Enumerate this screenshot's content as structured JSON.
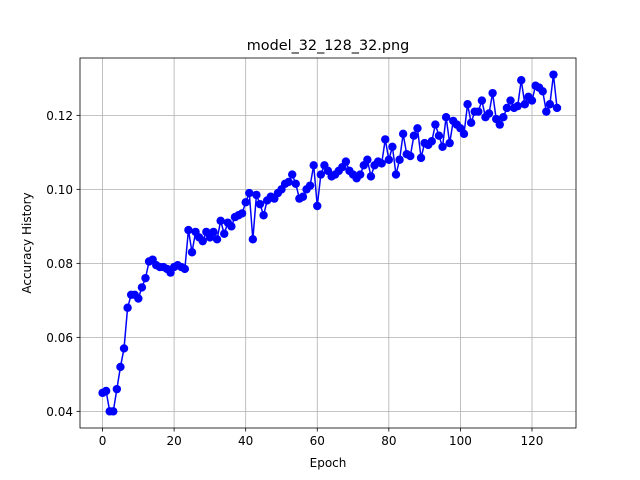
{
  "chart_data": {
    "type": "line",
    "title": "model_32_128_32.png",
    "xlabel": "Epoch",
    "ylabel": "Accuracy History",
    "xlim": [
      -6.3,
      132.3
    ],
    "ylim": [
      0.0355,
      0.1355
    ],
    "xticks": [
      0,
      20,
      40,
      60,
      80,
      100,
      120
    ],
    "yticks": [
      0.04,
      0.06,
      0.08,
      0.1,
      0.12
    ],
    "ytick_labels": [
      "0.04",
      "0.06",
      "0.08",
      "0.10",
      "0.12"
    ],
    "grid": true,
    "series": [
      {
        "color": "#0000ff",
        "marker": "circle",
        "x": [
          0,
          1,
          2,
          3,
          4,
          5,
          6,
          7,
          8,
          9,
          10,
          11,
          12,
          13,
          14,
          15,
          16,
          17,
          18,
          19,
          20,
          21,
          22,
          23,
          24,
          25,
          26,
          27,
          28,
          29,
          30,
          31,
          32,
          33,
          34,
          35,
          36,
          37,
          38,
          39,
          40,
          41,
          42,
          43,
          44,
          45,
          46,
          47,
          48,
          49,
          50,
          51,
          52,
          53,
          54,
          55,
          56,
          57,
          58,
          59,
          60,
          61,
          62,
          63,
          64,
          65,
          66,
          67,
          68,
          69,
          70,
          71,
          72,
          73,
          74,
          75,
          76,
          77,
          78,
          79,
          80,
          81,
          82,
          83,
          84,
          85,
          86,
          87,
          88,
          89,
          90,
          91,
          92,
          93,
          94,
          95,
          96,
          97,
          98,
          99,
          100,
          101,
          102,
          103,
          104,
          105,
          106,
          107,
          108,
          109,
          110,
          111,
          112,
          113,
          114,
          115,
          116,
          117,
          118,
          119,
          120,
          121,
          122,
          123,
          124,
          125,
          126,
          127
        ],
        "y": [
          0.045,
          0.0455,
          0.04,
          0.04,
          0.046,
          0.052,
          0.057,
          0.068,
          0.0715,
          0.0715,
          0.0705,
          0.0735,
          0.076,
          0.0805,
          0.081,
          0.0795,
          0.079,
          0.079,
          0.0785,
          0.0775,
          0.079,
          0.0795,
          0.079,
          0.0785,
          0.089,
          0.083,
          0.0885,
          0.087,
          0.086,
          0.0885,
          0.087,
          0.0885,
          0.0865,
          0.0915,
          0.088,
          0.091,
          0.09,
          0.0925,
          0.093,
          0.0935,
          0.0965,
          0.099,
          0.0865,
          0.0985,
          0.096,
          0.093,
          0.097,
          0.098,
          0.0975,
          0.099,
          0.1,
          0.1015,
          0.102,
          0.104,
          0.1015,
          0.0975,
          0.098,
          0.1,
          0.101,
          0.1065,
          0.0955,
          0.104,
          0.1065,
          0.105,
          0.1035,
          0.104,
          0.105,
          0.106,
          0.1075,
          0.105,
          0.104,
          0.103,
          0.104,
          0.1065,
          0.108,
          0.1035,
          0.1065,
          0.1075,
          0.107,
          0.1135,
          0.108,
          0.1115,
          0.104,
          0.108,
          0.115,
          0.1095,
          0.109,
          0.1145,
          0.1165,
          0.1085,
          0.1125,
          0.112,
          0.113,
          0.1175,
          0.1145,
          0.1115,
          0.1195,
          0.1125,
          0.1185,
          0.1175,
          0.1165,
          0.115,
          0.123,
          0.118,
          0.121,
          0.121,
          0.124,
          0.1195,
          0.1205,
          0.126,
          0.119,
          0.1175,
          0.1195,
          0.122,
          0.124,
          0.122,
          0.1225,
          0.1295,
          0.123,
          0.125,
          0.124,
          0.128,
          0.1275,
          0.1265,
          0.121,
          0.123,
          0.131,
          0.122
        ]
      }
    ]
  }
}
